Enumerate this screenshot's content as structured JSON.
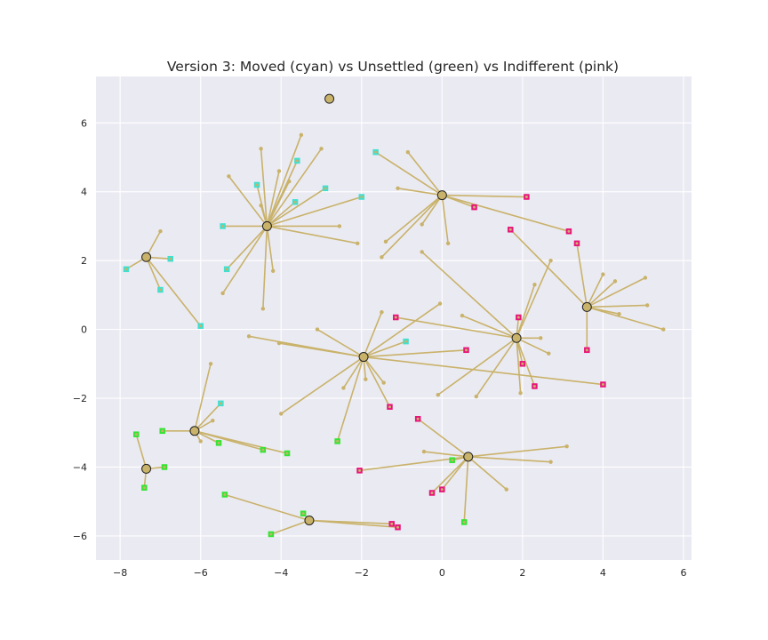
{
  "chart_data": {
    "type": "scatter",
    "title": "Version 3: Moved (cyan) vs Unsettled (green) vs Indifferent (pink)",
    "xlabel": "",
    "ylabel": "",
    "xlim": [
      -8.6,
      6.2
    ],
    "ylim": [
      -6.7,
      7.35
    ],
    "x_ticks": [
      -8,
      -6,
      -4,
      -2,
      0,
      2,
      4,
      6
    ],
    "y_ticks": [
      -6,
      -4,
      -2,
      0,
      2,
      4,
      6
    ],
    "grid": true,
    "colors": {
      "background": "#EAEAF2",
      "grid": "#FFFFFF",
      "edge": "#C9B26A",
      "center_fill": "#C9B26A",
      "center_edge": "#222222",
      "moved": "#40E0D0",
      "unsettled": "#32E532",
      "indifferent": "#E8157A"
    },
    "centers": [
      {
        "x": -2.8,
        "y": 6.7
      },
      {
        "x": -7.35,
        "y": 2.1
      },
      {
        "x": -4.35,
        "y": 3.0
      },
      {
        "x": 0.0,
        "y": 3.9
      },
      {
        "x": 3.6,
        "y": 0.65
      },
      {
        "x": 1.85,
        "y": -0.25
      },
      {
        "x": -1.95,
        "y": -0.8
      },
      {
        "x": -6.15,
        "y": -2.95
      },
      {
        "x": -7.35,
        "y": -4.05
      },
      {
        "x": 0.65,
        "y": -3.7
      },
      {
        "x": -3.3,
        "y": -5.55
      }
    ],
    "points": [
      {
        "x": -3.5,
        "y": 5.65,
        "c": 2,
        "t": "plain"
      },
      {
        "x": -3.0,
        "y": 5.25,
        "c": 2,
        "t": "plain"
      },
      {
        "x": -4.5,
        "y": 5.25,
        "c": 2,
        "t": "plain"
      },
      {
        "x": -5.3,
        "y": 4.45,
        "c": 2,
        "t": "plain"
      },
      {
        "x": -4.05,
        "y": 4.6,
        "c": 2,
        "t": "plain"
      },
      {
        "x": -3.8,
        "y": 4.3,
        "c": 2,
        "t": "plain"
      },
      {
        "x": -2.55,
        "y": 3.0,
        "c": 2,
        "t": "plain"
      },
      {
        "x": -2.1,
        "y": 2.5,
        "c": 2,
        "t": "plain"
      },
      {
        "x": -4.5,
        "y": 3.6,
        "c": 2,
        "t": "plain"
      },
      {
        "x": -4.2,
        "y": 1.7,
        "c": 2,
        "t": "plain"
      },
      {
        "x": -5.45,
        "y": 1.05,
        "c": 2,
        "t": "plain"
      },
      {
        "x": -4.45,
        "y": 0.6,
        "c": 2,
        "t": "plain"
      },
      {
        "x": -3.6,
        "y": 4.9,
        "c": 2,
        "t": "moved"
      },
      {
        "x": -4.6,
        "y": 4.2,
        "c": 2,
        "t": "moved"
      },
      {
        "x": -2.9,
        "y": 4.1,
        "c": 2,
        "t": "moved"
      },
      {
        "x": -3.65,
        "y": 3.7,
        "c": 2,
        "t": "moved"
      },
      {
        "x": -2.0,
        "y": 3.85,
        "c": 2,
        "t": "moved"
      },
      {
        "x": -5.45,
        "y": 3.0,
        "c": 2,
        "t": "moved"
      },
      {
        "x": -5.35,
        "y": 1.75,
        "c": 2,
        "t": "moved"
      },
      {
        "x": -7.0,
        "y": 2.85,
        "c": 1,
        "t": "plain"
      },
      {
        "x": -6.75,
        "y": 2.05,
        "c": 1,
        "t": "moved"
      },
      {
        "x": -7.85,
        "y": 1.75,
        "c": 1,
        "t": "moved"
      },
      {
        "x": -7.0,
        "y": 1.15,
        "c": 1,
        "t": "moved"
      },
      {
        "x": -6.0,
        "y": 0.1,
        "c": 1,
        "t": "moved"
      },
      {
        "x": -0.85,
        "y": 5.15,
        "c": 3,
        "t": "plain"
      },
      {
        "x": -1.1,
        "y": 4.1,
        "c": 3,
        "t": "plain"
      },
      {
        "x": -0.5,
        "y": 3.05,
        "c": 3,
        "t": "plain"
      },
      {
        "x": -1.4,
        "y": 2.55,
        "c": 3,
        "t": "plain"
      },
      {
        "x": -1.5,
        "y": 2.1,
        "c": 3,
        "t": "plain"
      },
      {
        "x": 0.15,
        "y": 2.5,
        "c": 3,
        "t": "plain"
      },
      {
        "x": -1.65,
        "y": 5.15,
        "c": 3,
        "t": "moved"
      },
      {
        "x": 2.1,
        "y": 3.85,
        "c": 3,
        "t": "indifferent"
      },
      {
        "x": 0.8,
        "y": 3.55,
        "c": 3,
        "t": "indifferent"
      },
      {
        "x": 3.15,
        "y": 2.85,
        "c": 3,
        "t": "indifferent"
      },
      {
        "x": 4.0,
        "y": 1.6,
        "c": 4,
        "t": "plain"
      },
      {
        "x": 4.3,
        "y": 1.4,
        "c": 4,
        "t": "plain"
      },
      {
        "x": 5.05,
        "y": 1.5,
        "c": 4,
        "t": "plain"
      },
      {
        "x": 5.1,
        "y": 0.7,
        "c": 4,
        "t": "plain"
      },
      {
        "x": 4.4,
        "y": 0.45,
        "c": 4,
        "t": "plain"
      },
      {
        "x": 5.5,
        "y": 0.0,
        "c": 4,
        "t": "plain"
      },
      {
        "x": 3.35,
        "y": 2.5,
        "c": 4,
        "t": "indifferent"
      },
      {
        "x": 1.7,
        "y": 2.9,
        "c": 4,
        "t": "indifferent"
      },
      {
        "x": 3.6,
        "y": -0.6,
        "c": 4,
        "t": "indifferent"
      },
      {
        "x": 2.7,
        "y": 2.0,
        "c": 5,
        "t": "plain"
      },
      {
        "x": 2.3,
        "y": 1.3,
        "c": 5,
        "t": "plain"
      },
      {
        "x": 0.5,
        "y": 0.4,
        "c": 5,
        "t": "plain"
      },
      {
        "x": -0.5,
        "y": 2.25,
        "c": 5,
        "t": "plain"
      },
      {
        "x": 2.45,
        "y": -0.25,
        "c": 5,
        "t": "plain"
      },
      {
        "x": 2.65,
        "y": -0.7,
        "c": 5,
        "t": "plain"
      },
      {
        "x": 1.95,
        "y": -1.85,
        "c": 5,
        "t": "plain"
      },
      {
        "x": 0.85,
        "y": -1.95,
        "c": 5,
        "t": "plain"
      },
      {
        "x": -0.1,
        "y": -1.9,
        "c": 5,
        "t": "plain"
      },
      {
        "x": 1.9,
        "y": 0.35,
        "c": 5,
        "t": "indifferent"
      },
      {
        "x": -1.15,
        "y": 0.35,
        "c": 5,
        "t": "indifferent"
      },
      {
        "x": 2.0,
        "y": -1.0,
        "c": 5,
        "t": "indifferent"
      },
      {
        "x": 2.3,
        "y": -1.65,
        "c": 5,
        "t": "indifferent"
      },
      {
        "x": -1.5,
        "y": 0.5,
        "c": 6,
        "t": "plain"
      },
      {
        "x": -0.05,
        "y": 0.75,
        "c": 6,
        "t": "plain"
      },
      {
        "x": -3.1,
        "y": 0.0,
        "c": 6,
        "t": "plain"
      },
      {
        "x": -4.8,
        "y": -0.2,
        "c": 6,
        "t": "plain"
      },
      {
        "x": -4.05,
        "y": -0.4,
        "c": 6,
        "t": "plain"
      },
      {
        "x": -2.45,
        "y": -1.7,
        "c": 6,
        "t": "plain"
      },
      {
        "x": -1.9,
        "y": -1.45,
        "c": 6,
        "t": "plain"
      },
      {
        "x": -1.45,
        "y": -1.55,
        "c": 6,
        "t": "plain"
      },
      {
        "x": -4.0,
        "y": -2.45,
        "c": 6,
        "t": "plain"
      },
      {
        "x": -0.9,
        "y": -0.35,
        "c": 6,
        "t": "moved"
      },
      {
        "x": 0.6,
        "y": -0.6,
        "c": 6,
        "t": "indifferent"
      },
      {
        "x": -1.3,
        "y": -2.25,
        "c": 6,
        "t": "indifferent"
      },
      {
        "x": 4.0,
        "y": -1.6,
        "c": 6,
        "t": "indifferent"
      },
      {
        "x": -2.6,
        "y": -3.25,
        "c": 6,
        "t": "unsettled"
      },
      {
        "x": -5.75,
        "y": -1.0,
        "c": 7,
        "t": "plain"
      },
      {
        "x": -5.7,
        "y": -2.65,
        "c": 7,
        "t": "plain"
      },
      {
        "x": -6.0,
        "y": -3.25,
        "c": 7,
        "t": "plain"
      },
      {
        "x": -5.5,
        "y": -2.15,
        "c": 7,
        "t": "moved"
      },
      {
        "x": -6.95,
        "y": -2.95,
        "c": 7,
        "t": "unsettled"
      },
      {
        "x": -5.55,
        "y": -3.3,
        "c": 7,
        "t": "unsettled"
      },
      {
        "x": -4.45,
        "y": -3.5,
        "c": 7,
        "t": "unsettled"
      },
      {
        "x": -3.85,
        "y": -3.6,
        "c": 7,
        "t": "unsettled"
      },
      {
        "x": -7.6,
        "y": -3.05,
        "c": 8,
        "t": "unsettled"
      },
      {
        "x": -6.9,
        "y": -4.0,
        "c": 8,
        "t": "unsettled"
      },
      {
        "x": -7.4,
        "y": -4.6,
        "c": 8,
        "t": "unsettled"
      },
      {
        "x": 3.1,
        "y": -3.4,
        "c": 9,
        "t": "plain"
      },
      {
        "x": 2.7,
        "y": -3.85,
        "c": 9,
        "t": "plain"
      },
      {
        "x": -0.45,
        "y": -3.55,
        "c": 9,
        "t": "plain"
      },
      {
        "x": 1.6,
        "y": -4.65,
        "c": 9,
        "t": "plain"
      },
      {
        "x": -0.6,
        "y": -2.6,
        "c": 9,
        "t": "indifferent"
      },
      {
        "x": -2.05,
        "y": -4.1,
        "c": 9,
        "t": "indifferent"
      },
      {
        "x": 0.0,
        "y": -4.65,
        "c": 9,
        "t": "indifferent"
      },
      {
        "x": -0.25,
        "y": -4.75,
        "c": 9,
        "t": "indifferent"
      },
      {
        "x": 0.25,
        "y": -3.8,
        "c": 9,
        "t": "unsettled"
      },
      {
        "x": 0.55,
        "y": -5.6,
        "c": 9,
        "t": "unsettled"
      },
      {
        "x": -5.4,
        "y": -4.8,
        "c": 10,
        "t": "unsettled"
      },
      {
        "x": -3.45,
        "y": -5.35,
        "c": 10,
        "t": "unsettled"
      },
      {
        "x": -4.25,
        "y": -5.95,
        "c": 10,
        "t": "unsettled"
      },
      {
        "x": -1.25,
        "y": -5.65,
        "c": 10,
        "t": "indifferent"
      },
      {
        "x": -1.1,
        "y": -5.75,
        "c": 10,
        "t": "indifferent"
      }
    ]
  }
}
